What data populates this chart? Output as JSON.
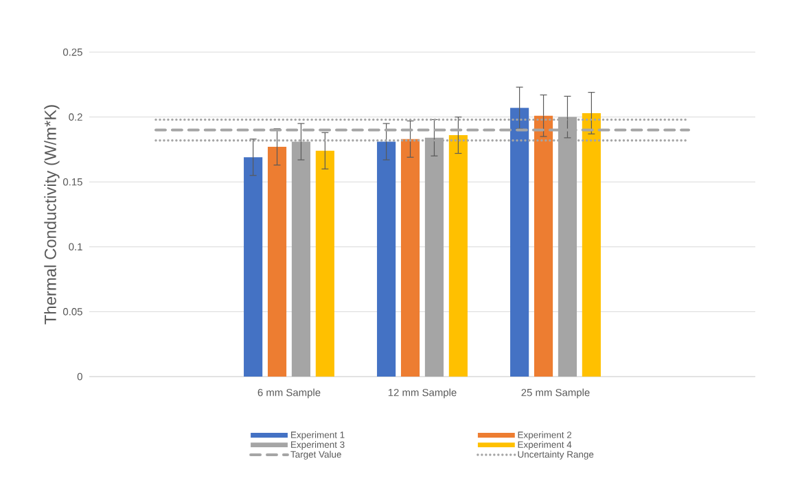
{
  "chart_data": {
    "type": "bar",
    "ylabel": "Thermal Conductivity (W/m*K)",
    "categories": [
      null,
      "6 mm Sample",
      "12 mm Sample",
      "25 mm Sample",
      null
    ],
    "series": [
      {
        "name": "Experiment 1",
        "color": "#4472c4",
        "values": [
          0,
          0.169,
          0.181,
          0.207,
          0
        ],
        "errors": [
          null,
          0.014,
          0.014,
          0.016,
          null
        ]
      },
      {
        "name": "Experiment 2",
        "color": "#ed7d31",
        "values": [
          0,
          0.177,
          0.183,
          0.201,
          0
        ],
        "errors": [
          null,
          0.014,
          0.014,
          0.016,
          null
        ]
      },
      {
        "name": "Experiment 3",
        "color": "#a5a5a5",
        "values": [
          0,
          0.181,
          0.184,
          0.2,
          0
        ],
        "errors": [
          null,
          0.014,
          0.014,
          0.016,
          null
        ]
      },
      {
        "name": "Experiment 4",
        "color": "#ffc000",
        "values": [
          0,
          0.174,
          0.186,
          0.203,
          0
        ],
        "errors": [
          null,
          0.014,
          0.014,
          0.016,
          null
        ]
      },
      {
        "name": "Target Value",
        "type": "line",
        "line_style": "dashed",
        "color": "#a5a5a5",
        "values": [
          0.19,
          0.19,
          0.19,
          0.19,
          0.19
        ]
      },
      {
        "name": "Uncertainty Range",
        "type": "line",
        "line_style": "dotted",
        "color": "#a5a5a5",
        "values": [
          0.198,
          0.198,
          0.198,
          0.198,
          0.198
        ]
      },
      {
        "type": "line",
        "line_style": "dotted",
        "color": "#a5a5a5",
        "values": [
          0.182,
          0.182,
          0.182,
          0.182,
          0.182
        ]
      }
    ],
    "ylim": [
      0,
      0.25
    ],
    "yticks": [
      0,
      0.05,
      0.1,
      0.15,
      0.2,
      0.25
    ],
    "grid": "y",
    "legend": "bottom",
    "marker": "none"
  }
}
